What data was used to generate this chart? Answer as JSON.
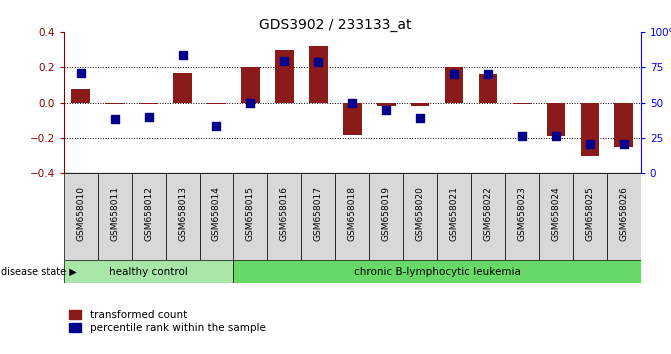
{
  "title": "GDS3902 / 233133_at",
  "samples": [
    "GSM658010",
    "GSM658011",
    "GSM658012",
    "GSM658013",
    "GSM658014",
    "GSM658015",
    "GSM658016",
    "GSM658017",
    "GSM658018",
    "GSM658019",
    "GSM658020",
    "GSM658021",
    "GSM658022",
    "GSM658023",
    "GSM658024",
    "GSM658025",
    "GSM658026"
  ],
  "red_values": [
    0.08,
    -0.01,
    -0.01,
    0.165,
    -0.01,
    0.2,
    0.3,
    0.32,
    -0.185,
    -0.02,
    -0.02,
    0.2,
    0.16,
    -0.01,
    -0.19,
    -0.3,
    -0.25
  ],
  "blue_values": [
    0.165,
    -0.09,
    -0.08,
    0.27,
    -0.13,
    0.0,
    0.235,
    0.23,
    0.0,
    -0.04,
    -0.085,
    0.16,
    0.16,
    -0.19,
    -0.19,
    -0.235,
    -0.235
  ],
  "disease_groups": [
    {
      "label": "healthy control",
      "start": 0,
      "end": 4,
      "color": "#a8e6a8"
    },
    {
      "label": "chronic B-lymphocytic leukemia",
      "start": 5,
      "end": 16,
      "color": "#66d966"
    }
  ],
  "ylim": [
    -0.4,
    0.4
  ],
  "y2lim": [
    0,
    100
  ],
  "yticks_left": [
    -0.4,
    -0.2,
    0.0,
    0.2,
    0.4
  ],
  "yticks_right": [
    0,
    25,
    50,
    75,
    100
  ],
  "dotted_lines": [
    -0.2,
    0.0,
    0.2
  ],
  "bar_color": "#8B1A1A",
  "dot_color": "#00008B",
  "legend_items": [
    "transformed count",
    "percentile rank within the sample"
  ],
  "disease_state_label": "disease state",
  "cell_color": "#d8d8d8"
}
